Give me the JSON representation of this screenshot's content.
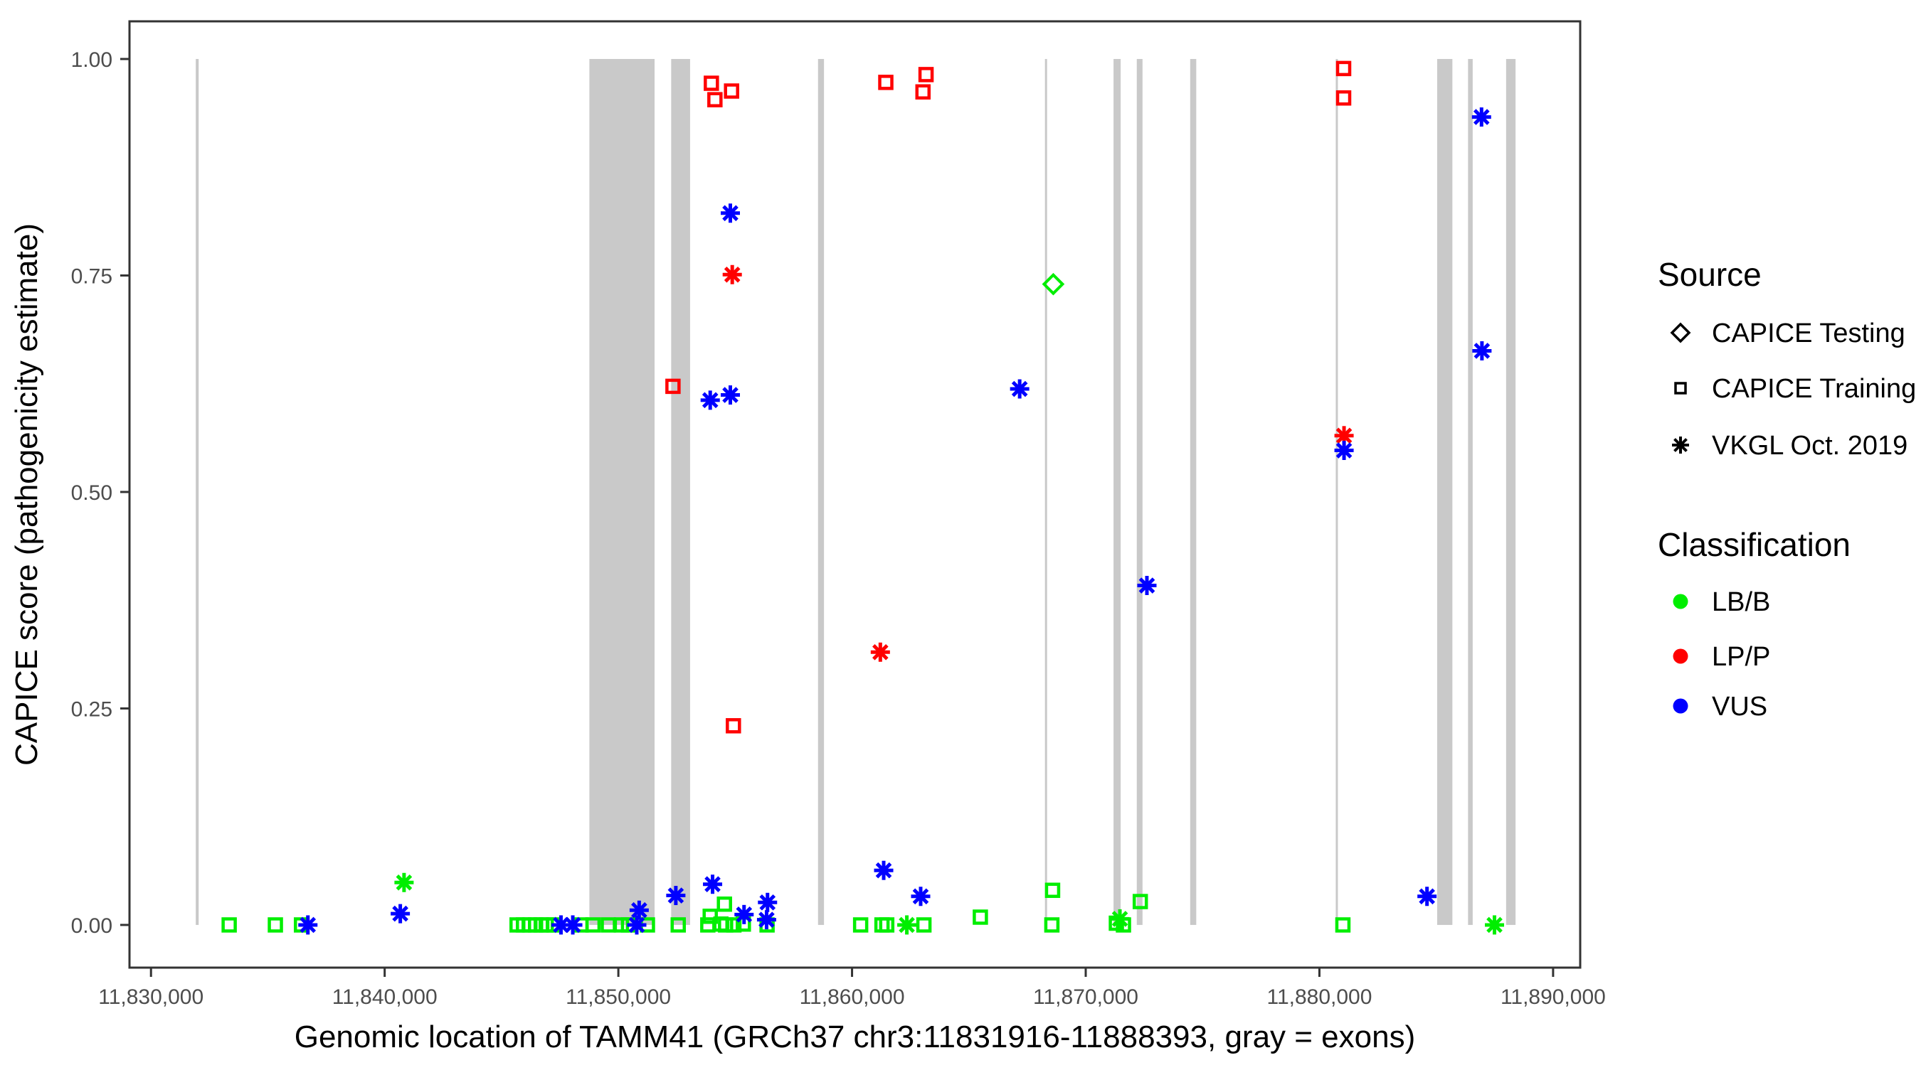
{
  "chart_data": {
    "type": "scatter",
    "title": "",
    "xlabel": "Genomic location of TAMM41 (GRCh37 chr3:11831916-11888393, gray = exons)",
    "ylabel": "CAPICE score (pathogenicity estimate)",
    "xlim": [
      11829080,
      11891160
    ],
    "ylim": [
      -0.0493,
      1.0435
    ],
    "grid": false,
    "x_ticks": [
      11830000,
      11840000,
      11850000,
      11860000,
      11870000,
      11880000,
      11890000
    ],
    "x_tick_labels": [
      "11,830,000",
      "11,840,000",
      "11,850,000",
      "11,860,000",
      "11,870,000",
      "11,880,000",
      "11,890,000"
    ],
    "y_ticks": [
      0.0,
      0.25,
      0.5,
      0.75,
      1.0
    ],
    "y_tick_labels": [
      "0.00",
      "0.25",
      "0.50",
      "0.75",
      "1.00"
    ],
    "exon_color": "#C9C9C9",
    "exon_note": "gray vertical bars = exons, drawn from score 0.0 to 1.0",
    "exons": [
      [
        11831916,
        11832040
      ],
      [
        11848760,
        11851550
      ],
      [
        11852260,
        11853070
      ],
      [
        11858545,
        11858800
      ],
      [
        11868255,
        11868340
      ],
      [
        11871190,
        11871495
      ],
      [
        11872185,
        11872430
      ],
      [
        11874470,
        11874730
      ],
      [
        11880700,
        11880790
      ],
      [
        11885040,
        11885690
      ],
      [
        11886360,
        11886560
      ],
      [
        11887990,
        11888393
      ]
    ],
    "legend": {
      "source_title": "Source",
      "source_items": [
        {
          "label": "CAPICE Testing",
          "marker": "diamond"
        },
        {
          "label": "CAPICE Training",
          "marker": "square"
        },
        {
          "label": "VKGL Oct. 2019",
          "marker": "asterisk"
        }
      ],
      "classification_title": "Classification",
      "classification_items": [
        {
          "label": "LB/B",
          "color": "#00EE00"
        },
        {
          "label": "LP/P",
          "color": "#FF0000"
        },
        {
          "label": "VUS",
          "color": "#0000FF"
        }
      ]
    },
    "colors": {
      "LB/B": "#00EE00",
      "LP/P": "#FF0000",
      "VUS": "#0000FF"
    },
    "markers": {
      "CAPICE Testing": "diamond",
      "CAPICE Training": "square",
      "VKGL Oct. 2019": "asterisk"
    },
    "series": [
      {
        "name": "CAPICE Testing / LB/B",
        "source": "CAPICE Testing",
        "classification": "LB/B",
        "marker": "diamond",
        "color": "#00EE00",
        "points": [
          [
            11868612,
            0.74
          ]
        ]
      },
      {
        "name": "CAPICE Training / LP/P",
        "source": "CAPICE Training",
        "classification": "LP/P",
        "marker": "square",
        "color": "#FF0000",
        "points": [
          [
            11853980,
            0.972
          ],
          [
            11854132,
            0.953
          ],
          [
            11854844,
            0.963
          ],
          [
            11861445,
            0.973
          ],
          [
            11863036,
            0.962
          ],
          [
            11863167,
            0.982
          ],
          [
            11881037,
            0.989
          ],
          [
            11881037,
            0.955
          ],
          [
            11852337,
            0.622
          ],
          [
            11854923,
            0.23
          ]
        ]
      },
      {
        "name": "CAPICE Training / LB/B",
        "source": "CAPICE Training",
        "classification": "LB/B",
        "marker": "square",
        "color": "#00EE00",
        "points": [
          [
            11833346,
            0.0
          ],
          [
            11835323,
            0.0
          ],
          [
            11836440,
            0.0
          ],
          [
            11845666,
            0.0
          ],
          [
            11845940,
            0.0
          ],
          [
            11846214,
            0.0
          ],
          [
            11846457,
            0.0
          ],
          [
            11846700,
            0.0
          ],
          [
            11846913,
            0.0
          ],
          [
            11847241,
            0.0
          ],
          [
            11848406,
            0.0
          ],
          [
            11848914,
            0.0
          ],
          [
            11849571,
            0.0
          ],
          [
            11850130,
            0.0
          ],
          [
            11850435,
            0.0
          ],
          [
            11851244,
            0.0
          ],
          [
            11852562,
            0.0
          ],
          [
            11853828,
            0.0
          ],
          [
            11853931,
            0.01
          ],
          [
            11854388,
            0.001
          ],
          [
            11854540,
            0.024
          ],
          [
            11854589,
            0.0
          ],
          [
            11854944,
            0.0
          ],
          [
            11855349,
            0.001
          ],
          [
            11856364,
            0.0
          ],
          [
            11860368,
            0.0
          ],
          [
            11861281,
            0.0
          ],
          [
            11861485,
            0.0
          ],
          [
            11863076,
            0.0
          ],
          [
            11865491,
            0.009
          ],
          [
            11868582,
            0.04
          ],
          [
            11868551,
            0.0
          ],
          [
            11871311,
            0.002
          ],
          [
            11871615,
            0.0
          ],
          [
            11872335,
            0.027
          ],
          [
            11881005,
            0.0
          ]
        ]
      },
      {
        "name": "VKGL Oct. 2019 / LB/B",
        "source": "VKGL Oct. 2019",
        "classification": "LB/B",
        "marker": "asterisk",
        "color": "#00EE00",
        "points": [
          [
            11840829,
            0.049
          ],
          [
            11862345,
            0.0
          ],
          [
            11871463,
            0.007
          ],
          [
            11887492,
            0.0
          ]
        ]
      },
      {
        "name": "VKGL Oct. 2019 / LP/P",
        "source": "VKGL Oct. 2019",
        "classification": "LP/P",
        "marker": "asterisk",
        "color": "#FF0000",
        "points": [
          [
            11854874,
            0.751
          ],
          [
            11861211,
            0.315
          ],
          [
            11881054,
            0.565
          ]
        ]
      },
      {
        "name": "VKGL Oct. 2019 / VUS",
        "source": "VKGL Oct. 2019",
        "classification": "VUS",
        "marker": "asterisk",
        "color": "#0000FF",
        "points": [
          [
            11854792,
            0.822
          ],
          [
            11853931,
            0.606
          ],
          [
            11854792,
            0.612
          ],
          [
            11867173,
            0.619
          ],
          [
            11872618,
            0.392
          ],
          [
            11881054,
            0.548
          ],
          [
            11886937,
            0.933
          ],
          [
            11886955,
            0.663
          ],
          [
            11884604,
            0.033
          ],
          [
            11836714,
            0.0
          ],
          [
            11840668,
            0.013
          ],
          [
            11847545,
            0.0
          ],
          [
            11848050,
            0.0
          ],
          [
            11850788,
            0.0
          ],
          [
            11850891,
            0.017
          ],
          [
            11852459,
            0.034
          ],
          [
            11854032,
            0.047
          ],
          [
            11855379,
            0.012
          ],
          [
            11856383,
            0.026
          ],
          [
            11856343,
            0.006
          ],
          [
            11861354,
            0.063
          ],
          [
            11862936,
            0.033
          ]
        ]
      }
    ],
    "style": {
      "tick_label_color": "#4D4D4D",
      "axis_title_color": "#000000",
      "panel_border_color": "#333333",
      "background": "#FFFFFF"
    }
  }
}
